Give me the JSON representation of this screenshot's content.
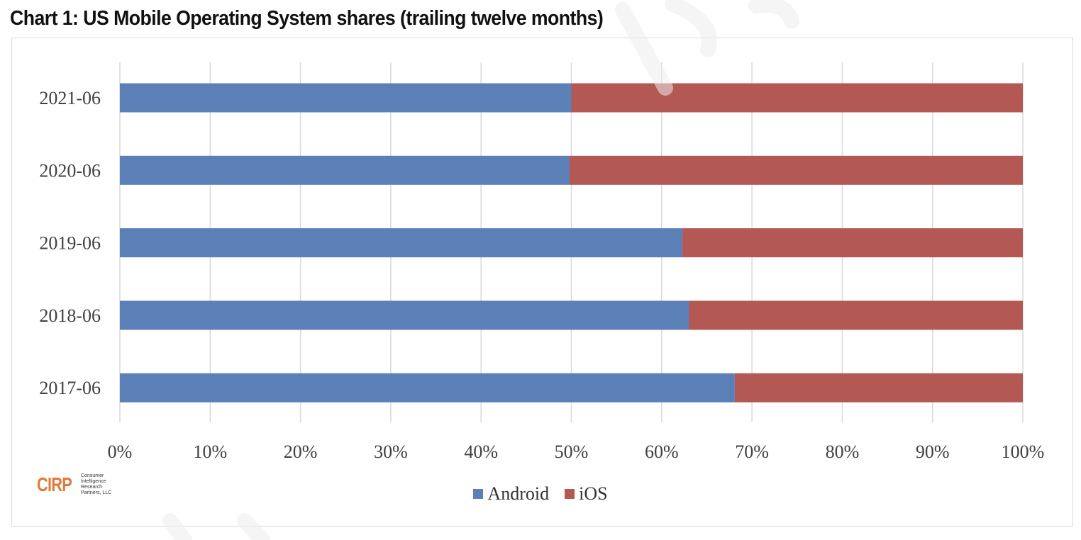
{
  "title": "Chart 1: US Mobile Operating System shares (trailing twelve months)",
  "logo": {
    "mark": "CIRP",
    "lines": [
      "Consumer",
      "Intelligence",
      "Research",
      "Partners, LLC"
    ],
    "color": "#e07a3c"
  },
  "chart_data": {
    "type": "bar",
    "orientation": "horizontal",
    "stacked": "percent",
    "categories": [
      "2021-06",
      "2020-06",
      "2019-06",
      "2018-06",
      "2017-06"
    ],
    "series": [
      {
        "name": "Android",
        "color": "#5b80b8",
        "values": [
          50,
          49.8,
          62.3,
          63,
          68.1
        ]
      },
      {
        "name": "iOS",
        "color": "#b35852",
        "values": [
          50,
          50.2,
          37.7,
          37,
          31.9
        ]
      }
    ],
    "x_ticks": [
      "0%",
      "10%",
      "20%",
      "30%",
      "40%",
      "50%",
      "60%",
      "70%",
      "80%",
      "90%",
      "100%"
    ],
    "xlim": [
      0,
      100
    ],
    "grid": true,
    "legend_position": "bottom"
  }
}
